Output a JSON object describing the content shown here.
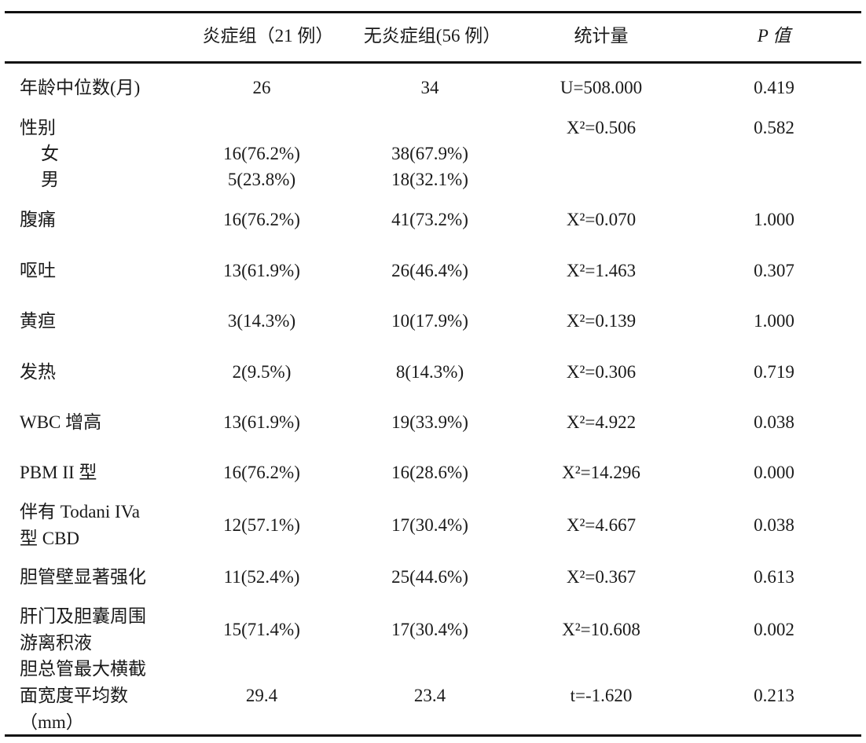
{
  "header": {
    "label": "",
    "group1": "炎症组（21 例）",
    "group2": "无炎症组(56 例）",
    "statistic": "统计量",
    "p_value": "P 值"
  },
  "rows": [
    {
      "label": "年龄中位数(月)",
      "g1": "26",
      "g2": "34",
      "stat": "U=508.000",
      "p": "0.419"
    },
    {
      "label": "性别",
      "g1": "",
      "g2": "",
      "stat": "X²=0.506",
      "p": "0.582"
    },
    {
      "label": "女",
      "g1": "16(76.2%)",
      "g2": "38(67.9%)",
      "stat": "",
      "p": ""
    },
    {
      "label": "男",
      "g1": "5(23.8%)",
      "g2": "18(32.1%)",
      "stat": "",
      "p": ""
    },
    {
      "label": "腹痛",
      "g1": "16(76.2%)",
      "g2": "41(73.2%)",
      "stat": "X²=0.070",
      "p": "1.000"
    },
    {
      "label": "呕吐",
      "g1": "13(61.9%)",
      "g2": "26(46.4%)",
      "stat": "X²=1.463",
      "p": "0.307"
    },
    {
      "label": "黄疸",
      "g1": "3(14.3%)",
      "g2": "10(17.9%)",
      "stat": "X²=0.139",
      "p": "1.000"
    },
    {
      "label": "发热",
      "g1": "2(9.5%)",
      "g2": "8(14.3%)",
      "stat": "X²=0.306",
      "p": "0.719"
    },
    {
      "label": "WBC 增高",
      "g1": "13(61.9%)",
      "g2": "19(33.9%)",
      "stat": "X²=4.922",
      "p": "0.038"
    },
    {
      "label": "PBM II 型",
      "g1": "16(76.2%)",
      "g2": "16(28.6%)",
      "stat": "X²=14.296",
      "p": "0.000"
    },
    {
      "label": "伴有 Todani IVa\n型 CBD",
      "g1": "12(57.1%)",
      "g2": "17(30.4%)",
      "stat": "X²=4.667",
      "p": "0.038"
    },
    {
      "label": "胆管壁显著强化",
      "g1": "11(52.4%)",
      "g2": "25(44.6%)",
      "stat": "X²=0.367",
      "p": "0.613"
    },
    {
      "label": "肝门及胆囊周围\n游离积液",
      "g1": "15(71.4%)",
      "g2": "17(30.4%)",
      "stat": "X²=10.608",
      "p": "0.002"
    },
    {
      "label": "胆总管最大横截\n面宽度平均数\n（mm）",
      "g1": "29.4",
      "g2": "23.4",
      "stat": "t=-1.620",
      "p": "0.213"
    }
  ]
}
